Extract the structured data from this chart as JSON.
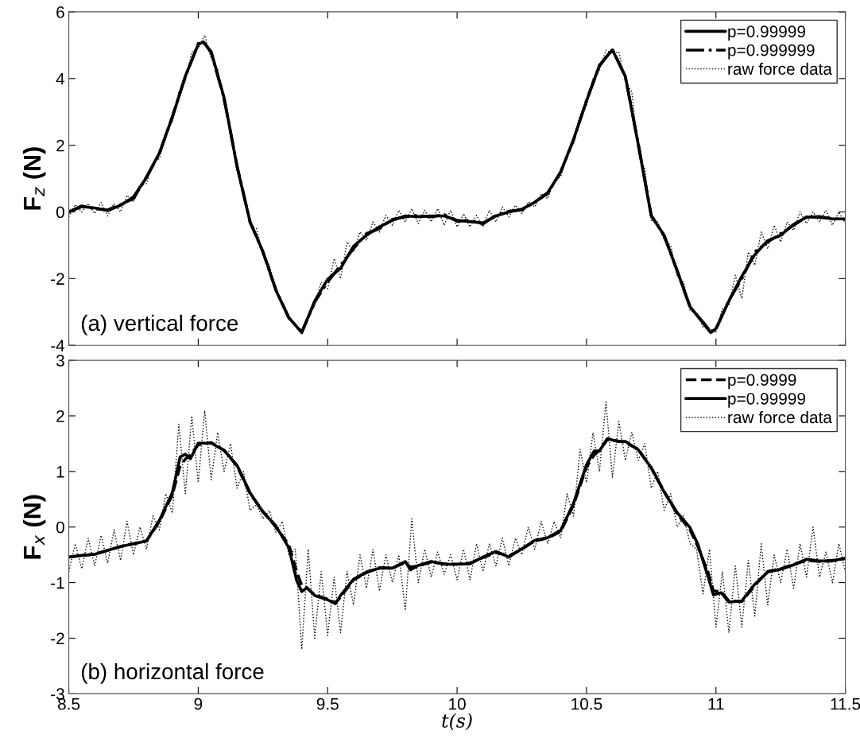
{
  "chart_data": [
    {
      "type": "line",
      "ylabel": "F$_{z}$ (N)",
      "annotations": [
        "(a) vertical force"
      ],
      "xlim": [
        8.5,
        11.5
      ],
      "xticks": [
        8.5,
        9,
        9.5,
        10,
        10.5,
        11,
        11.5
      ],
      "ylim": [
        -4,
        6
      ],
      "yticks": [
        -4,
        -2,
        0,
        2,
        4,
        6
      ],
      "tick_labels": "y",
      "legend": "top right",
      "grid": false,
      "series": [
        {
          "name": "p=0.99999",
          "color": "#000000",
          "line_style": "solid",
          "x": [
            8.5,
            8.55,
            8.6,
            8.65,
            8.7,
            8.75,
            8.8,
            8.85,
            8.9,
            8.95,
            9.0,
            9.02,
            9.05,
            9.1,
            9.15,
            9.2,
            9.25,
            9.3,
            9.35,
            9.4,
            9.45,
            9.5,
            9.55,
            9.6,
            9.65,
            9.7,
            9.75,
            9.8,
            9.85,
            9.9,
            9.95,
            10.0,
            10.05,
            10.1,
            10.15,
            10.2,
            10.25,
            10.3,
            10.35,
            10.4,
            10.45,
            10.5,
            10.55,
            10.6,
            10.65,
            10.7,
            10.75,
            10.8,
            10.85,
            10.9,
            10.95,
            10.98,
            11.0,
            11.05,
            11.1,
            11.15,
            11.2,
            11.25,
            11.3,
            11.35,
            11.4,
            11.45,
            11.5
          ],
          "values": [
            0.0,
            0.16,
            0.12,
            0.04,
            0.2,
            0.45,
            1.03,
            1.77,
            2.84,
            4.07,
            5.02,
            5.1,
            4.81,
            3.42,
            1.36,
            -0.29,
            -1.19,
            -2.35,
            -3.17,
            -3.62,
            -2.67,
            -2.02,
            -1.69,
            -1.03,
            -0.7,
            -0.45,
            -0.25,
            -0.12,
            -0.14,
            -0.12,
            -0.12,
            -0.25,
            -0.29,
            -0.33,
            -0.12,
            0.0,
            0.08,
            0.29,
            0.58,
            1.19,
            2.18,
            3.33,
            4.4,
            4.86,
            4.07,
            2.02,
            -0.12,
            -0.7,
            -1.77,
            -2.84,
            -3.33,
            -3.62,
            -3.5,
            -2.67,
            -1.93,
            -1.28,
            -0.86,
            -0.7,
            -0.37,
            -0.16,
            -0.14,
            -0.21,
            -0.21
          ]
        },
        {
          "name": "p=0.999999",
          "color": "#000000",
          "line_style": "dashdot",
          "x": [
            8.5,
            8.55,
            8.6,
            8.65,
            8.7,
            8.75,
            8.8,
            8.85,
            8.9,
            8.95,
            9.0,
            9.02,
            9.05,
            9.1,
            9.15,
            9.2,
            9.25,
            9.3,
            9.35,
            9.4,
            9.45,
            9.5,
            9.55,
            9.6,
            9.65,
            9.7,
            9.75,
            9.8,
            9.85,
            9.9,
            9.95,
            10.0,
            10.05,
            10.1,
            10.15,
            10.2,
            10.25,
            10.3,
            10.35,
            10.4,
            10.45,
            10.5,
            10.55,
            10.6,
            10.65,
            10.7,
            10.75,
            10.8,
            10.85,
            10.9,
            10.95,
            10.98,
            11.0,
            11.05,
            11.1,
            11.15,
            11.2,
            11.25,
            11.3,
            11.35,
            11.4,
            11.45,
            11.5
          ],
          "values": [
            0.0,
            0.18,
            0.1,
            0.06,
            0.22,
            0.4,
            1.05,
            1.75,
            2.86,
            4.05,
            5.05,
            5.1,
            4.78,
            3.4,
            1.38,
            -0.3,
            -1.2,
            -2.33,
            -3.18,
            -3.6,
            -2.7,
            -2.1,
            -1.6,
            -1.1,
            -0.65,
            -0.5,
            -0.22,
            -0.15,
            -0.1,
            -0.15,
            -0.08,
            -0.28,
            -0.25,
            -0.36,
            -0.1,
            0.02,
            0.06,
            0.3,
            0.55,
            1.2,
            2.16,
            3.35,
            4.38,
            4.88,
            4.05,
            2.04,
            -0.1,
            -0.72,
            -1.75,
            -2.86,
            -3.3,
            -3.6,
            -3.52,
            -2.65,
            -2.0,
            -1.2,
            -0.9,
            -0.65,
            -0.4,
            -0.15,
            -0.16,
            -0.2,
            -0.22
          ]
        },
        {
          "name": "raw force data",
          "color": "#000000",
          "line_style": "dotted",
          "x": [
            8.5,
            8.525,
            8.55,
            8.575,
            8.6,
            8.625,
            8.65,
            8.675,
            8.7,
            8.725,
            8.75,
            8.775,
            8.8,
            8.825,
            8.85,
            8.875,
            8.9,
            8.925,
            8.95,
            8.975,
            9.0,
            9.025,
            9.05,
            9.075,
            9.1,
            9.125,
            9.15,
            9.175,
            9.2,
            9.225,
            9.25,
            9.275,
            9.3,
            9.325,
            9.35,
            9.375,
            9.4,
            9.425,
            9.45,
            9.475,
            9.5,
            9.525,
            9.55,
            9.575,
            9.6,
            9.625,
            9.65,
            9.675,
            9.7,
            9.725,
            9.75,
            9.775,
            9.8,
            9.825,
            9.85,
            9.875,
            9.9,
            9.925,
            9.95,
            9.975,
            10.0,
            10.025,
            10.05,
            10.075,
            10.1,
            10.125,
            10.15,
            10.175,
            10.2,
            10.225,
            10.25,
            10.275,
            10.3,
            10.325,
            10.35,
            10.375,
            10.4,
            10.425,
            10.45,
            10.475,
            10.5,
            10.525,
            10.55,
            10.575,
            10.6,
            10.625,
            10.65,
            10.675,
            10.7,
            10.725,
            10.75,
            10.775,
            10.8,
            10.825,
            10.85,
            10.875,
            10.9,
            10.925,
            10.95,
            10.975,
            11.0,
            11.025,
            11.05,
            11.075,
            11.1,
            11.125,
            11.15,
            11.175,
            11.2,
            11.225,
            11.25,
            11.275,
            11.3,
            11.325,
            11.35,
            11.375,
            11.4,
            11.425,
            11.45,
            11.475,
            11.5
          ],
          "values": [
            -0.15,
            0.22,
            0.0,
            0.25,
            -0.05,
            0.28,
            -0.12,
            0.25,
            0.0,
            0.5,
            0.3,
            0.8,
            0.85,
            1.5,
            1.6,
            2.4,
            2.7,
            3.6,
            3.9,
            4.8,
            4.9,
            5.3,
            4.6,
            4.3,
            3.2,
            2.5,
            1.2,
            0.7,
            -0.4,
            -0.5,
            -1.3,
            -1.6,
            -2.4,
            -2.7,
            -3.2,
            -3.35,
            -3.65,
            -3.2,
            -2.8,
            -2.1,
            -2.3,
            -1.4,
            -2.0,
            -0.9,
            -1.2,
            -0.6,
            -0.85,
            -0.3,
            -0.6,
            -0.1,
            -0.4,
            0.05,
            -0.3,
            0.1,
            -0.35,
            0.05,
            -0.3,
            0.1,
            -0.4,
            0.05,
            -0.45,
            -0.05,
            -0.45,
            -0.1,
            -0.45,
            0.05,
            -0.3,
            0.15,
            -0.15,
            0.2,
            -0.05,
            0.3,
            0.15,
            0.55,
            0.4,
            0.95,
            1.05,
            1.75,
            2.05,
            2.9,
            3.2,
            4.0,
            4.25,
            4.85,
            4.75,
            4.8,
            3.9,
            3.6,
            1.8,
            1.3,
            -0.25,
            -0.3,
            -0.85,
            -1.0,
            -1.9,
            -2.1,
            -2.95,
            -3.0,
            -3.45,
            -3.5,
            -3.6,
            -2.9,
            -2.8,
            -1.9,
            -2.6,
            -1.2,
            -1.6,
            -0.6,
            -1.1,
            -0.4,
            -0.9,
            -0.3,
            -0.55,
            0.0,
            -0.35,
            0.0,
            -0.3,
            0.05,
            -0.4,
            0.0,
            -0.35
          ]
        }
      ]
    },
    {
      "type": "line",
      "xlabel": "t(s)",
      "ylabel": "F$_{x}$ (N)",
      "annotations": [
        "(b) horizontal force"
      ],
      "xlim": [
        8.5,
        11.5
      ],
      "xticks": [
        8.5,
        9,
        9.5,
        10,
        10.5,
        11,
        11.5
      ],
      "ylim": [
        -3,
        3
      ],
      "yticks": [
        -3,
        -2,
        -1,
        0,
        1,
        2,
        3
      ],
      "legend": "top right",
      "grid": false,
      "series": [
        {
          "name": "p=0.9999",
          "color": "#000000",
          "line_style": "dashed",
          "x": [
            8.5,
            8.55,
            8.6,
            8.65,
            8.7,
            8.75,
            8.8,
            8.85,
            8.9,
            8.93,
            8.95,
            8.97,
            9.0,
            9.05,
            9.1,
            9.15,
            9.2,
            9.25,
            9.3,
            9.35,
            9.38,
            9.4,
            9.42,
            9.45,
            9.5,
            9.53,
            9.55,
            9.6,
            9.65,
            9.7,
            9.75,
            9.8,
            9.82,
            9.85,
            9.9,
            9.95,
            10.0,
            10.05,
            10.1,
            10.15,
            10.2,
            10.25,
            10.3,
            10.35,
            10.4,
            10.45,
            10.5,
            10.53,
            10.55,
            10.58,
            10.62,
            10.65,
            10.7,
            10.75,
            10.8,
            10.85,
            10.9,
            10.93,
            10.97,
            10.99,
            11.02,
            11.05,
            11.1,
            11.15,
            11.2,
            11.25,
            11.3,
            11.35,
            11.4,
            11.45,
            11.5
          ],
          "values": [
            -0.54,
            -0.51,
            -0.49,
            -0.42,
            -0.35,
            -0.3,
            -0.25,
            0.1,
            0.58,
            1.1,
            1.22,
            1.3,
            1.48,
            1.52,
            1.38,
            1.1,
            0.6,
            0.28,
            0.0,
            -0.32,
            -0.8,
            -1.05,
            -1.1,
            -1.22,
            -1.3,
            -1.36,
            -1.26,
            -0.95,
            -0.82,
            -0.73,
            -0.74,
            -0.64,
            -0.72,
            -0.7,
            -0.63,
            -0.66,
            -0.67,
            -0.65,
            -0.55,
            -0.46,
            -0.52,
            -0.4,
            -0.25,
            -0.2,
            -0.08,
            0.4,
            1.08,
            1.3,
            1.38,
            1.57,
            1.55,
            1.52,
            1.4,
            1.06,
            0.64,
            0.24,
            -0.05,
            -0.35,
            -0.82,
            -1.15,
            -1.16,
            -1.33,
            -1.34,
            -1.05,
            -0.8,
            -0.75,
            -0.67,
            -0.6,
            -0.62,
            -0.6,
            -0.57
          ]
        },
        {
          "name": "p=0.99999",
          "color": "#000000",
          "line_style": "solid",
          "x": [
            8.5,
            8.55,
            8.6,
            8.65,
            8.7,
            8.75,
            8.8,
            8.85,
            8.9,
            8.93,
            8.95,
            8.97,
            9.0,
            9.05,
            9.1,
            9.15,
            9.2,
            9.25,
            9.3,
            9.35,
            9.38,
            9.4,
            9.42,
            9.45,
            9.5,
            9.53,
            9.55,
            9.6,
            9.65,
            9.7,
            9.75,
            9.8,
            9.82,
            9.85,
            9.9,
            9.95,
            10.0,
            10.05,
            10.1,
            10.15,
            10.2,
            10.25,
            10.3,
            10.35,
            10.4,
            10.45,
            10.5,
            10.53,
            10.55,
            10.58,
            10.62,
            10.65,
            10.7,
            10.75,
            10.8,
            10.85,
            10.9,
            10.93,
            10.97,
            10.99,
            11.02,
            11.05,
            11.1,
            11.15,
            11.2,
            11.25,
            11.3,
            11.35,
            11.4,
            11.45,
            11.5
          ],
          "values": [
            -0.54,
            -0.51,
            -0.49,
            -0.42,
            -0.35,
            -0.3,
            -0.25,
            0.12,
            0.62,
            1.26,
            1.31,
            1.23,
            1.51,
            1.51,
            1.38,
            1.11,
            0.62,
            0.27,
            0.02,
            -0.37,
            -0.96,
            -1.16,
            -1.09,
            -1.23,
            -1.31,
            -1.38,
            -1.23,
            -0.94,
            -0.81,
            -0.74,
            -0.74,
            -0.62,
            -0.77,
            -0.69,
            -0.62,
            -0.67,
            -0.67,
            -0.66,
            -0.54,
            -0.44,
            -0.54,
            -0.39,
            -0.24,
            -0.19,
            -0.06,
            0.43,
            1.12,
            1.37,
            1.37,
            1.59,
            1.54,
            1.54,
            1.39,
            1.07,
            0.63,
            0.26,
            -0.01,
            -0.31,
            -0.9,
            -1.22,
            -1.18,
            -1.35,
            -1.33,
            -1.03,
            -0.81,
            -0.76,
            -0.68,
            -0.58,
            -0.61,
            -0.61,
            -0.56
          ]
        },
        {
          "name": "raw force data",
          "color": "#000000",
          "line_style": "dotted",
          "x": [
            8.5,
            8.525,
            8.55,
            8.575,
            8.6,
            8.625,
            8.65,
            8.675,
            8.7,
            8.725,
            8.75,
            8.775,
            8.8,
            8.825,
            8.85,
            8.875,
            8.9,
            8.925,
            8.95,
            8.975,
            9.0,
            9.025,
            9.05,
            9.075,
            9.1,
            9.125,
            9.15,
            9.175,
            9.2,
            9.225,
            9.25,
            9.275,
            9.3,
            9.325,
            9.35,
            9.375,
            9.4,
            9.425,
            9.45,
            9.475,
            9.5,
            9.525,
            9.55,
            9.575,
            9.6,
            9.625,
            9.65,
            9.675,
            9.7,
            9.725,
            9.75,
            9.775,
            9.8,
            9.825,
            9.85,
            9.875,
            9.9,
            9.925,
            9.95,
            9.975,
            10.0,
            10.025,
            10.05,
            10.075,
            10.1,
            10.125,
            10.15,
            10.175,
            10.2,
            10.225,
            10.25,
            10.275,
            10.3,
            10.325,
            10.35,
            10.375,
            10.4,
            10.425,
            10.45,
            10.475,
            10.5,
            10.525,
            10.55,
            10.575,
            10.6,
            10.625,
            10.65,
            10.675,
            10.7,
            10.725,
            10.75,
            10.775,
            10.8,
            10.825,
            10.85,
            10.875,
            10.9,
            10.925,
            10.95,
            10.975,
            11.0,
            11.025,
            11.05,
            11.075,
            11.1,
            11.125,
            11.15,
            11.175,
            11.2,
            11.225,
            11.25,
            11.275,
            11.3,
            11.325,
            11.35,
            11.375,
            11.4,
            11.425,
            11.45,
            11.475,
            11.5
          ],
          "values": [
            -0.8,
            -0.3,
            -0.75,
            -0.2,
            -0.7,
            -0.15,
            -0.65,
            -0.05,
            -0.6,
            0.1,
            -0.5,
            0.0,
            -0.4,
            0.2,
            -0.05,
            0.6,
            0.25,
            1.85,
            0.6,
            2.0,
            0.8,
            2.1,
            0.85,
            1.7,
            1.0,
            1.5,
            0.7,
            1.0,
            0.3,
            0.4,
            0.15,
            0.3,
            -0.1,
            0.1,
            -0.5,
            -0.4,
            -2.2,
            -0.4,
            -2.0,
            -0.8,
            -1.95,
            -0.9,
            -1.9,
            -0.8,
            -1.4,
            -0.5,
            -1.1,
            -0.4,
            -1.15,
            -0.5,
            -1.0,
            -0.5,
            -1.5,
            0.15,
            -1.0,
            -0.4,
            -0.9,
            -0.45,
            -0.85,
            -0.5,
            -0.95,
            -0.4,
            -0.95,
            -0.3,
            -0.8,
            -0.3,
            -0.7,
            -0.2,
            -0.7,
            -0.2,
            -0.5,
            0.0,
            -0.4,
            0.1,
            -0.3,
            0.1,
            -0.2,
            0.6,
            0.2,
            1.4,
            0.8,
            1.7,
            1.0,
            2.25,
            0.9,
            1.9,
            1.2,
            1.7,
            1.2,
            1.5,
            0.7,
            1.0,
            0.3,
            0.6,
            0.0,
            0.2,
            -0.3,
            -0.4,
            -1.2,
            -0.4,
            -1.8,
            -0.8,
            -1.9,
            -0.7,
            -1.8,
            -0.6,
            -1.6,
            -0.3,
            -1.4,
            -0.5,
            -1.0,
            -0.4,
            -1.1,
            -0.3,
            -0.9,
            0.0,
            -0.9,
            -0.45,
            -1.0,
            -0.3,
            -0.8
          ]
        }
      ]
    }
  ]
}
